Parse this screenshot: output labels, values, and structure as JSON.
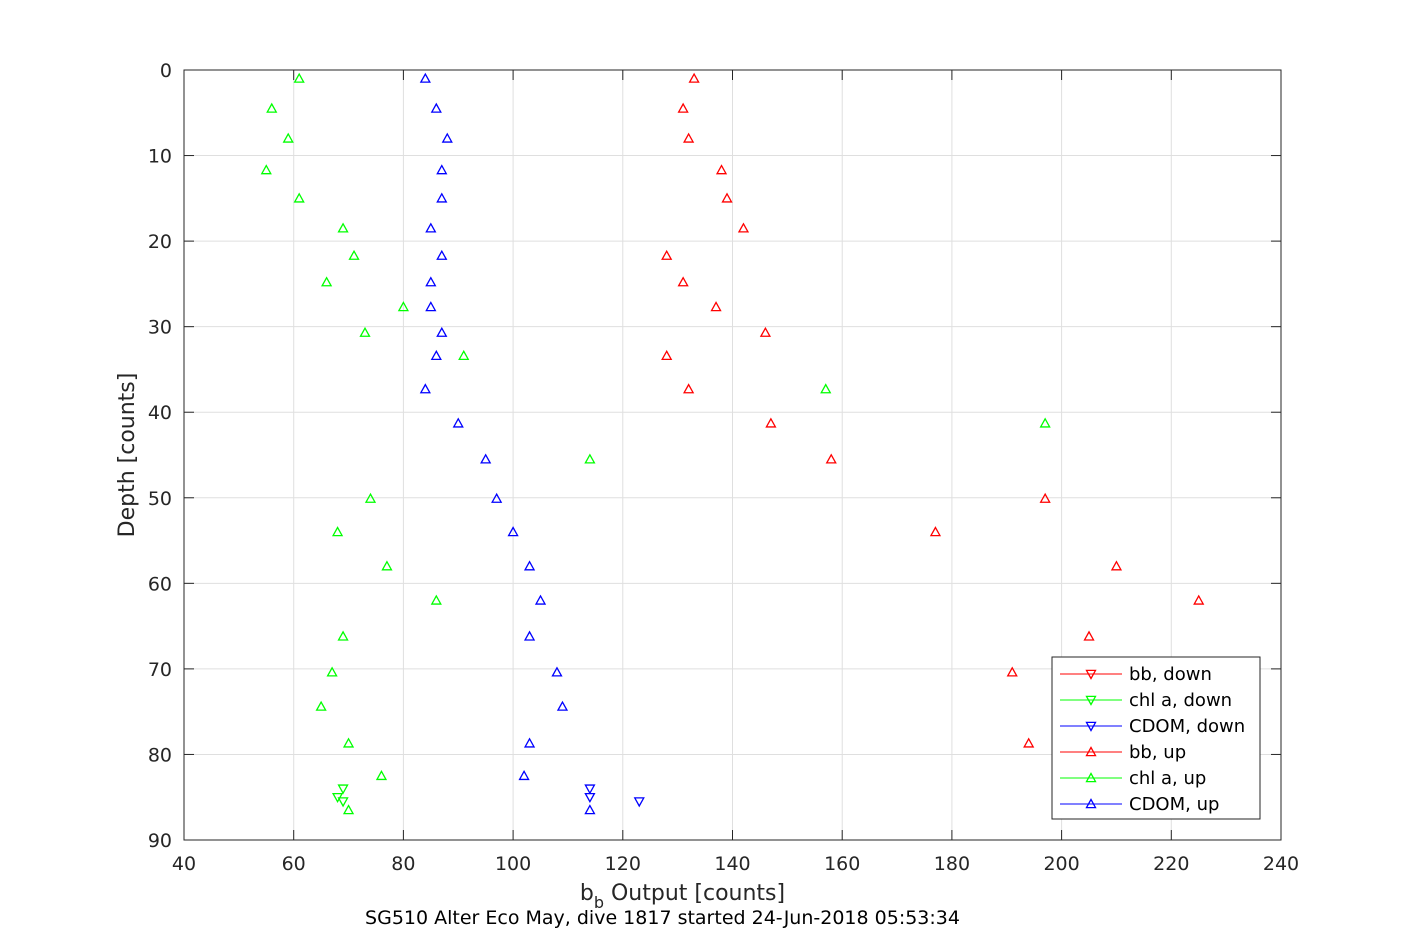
{
  "chart_data": {
    "type": "scatter",
    "xlabel_main": "b",
    "xlabel_sub": "b",
    "xlabel_rest": " Output [counts]",
    "ylabel": "Depth [counts]",
    "caption": "SG510 Alter Eco May, dive 1817 started 24-Jun-2018 05:53:34",
    "xlim": [
      40,
      240
    ],
    "ylim": [
      0,
      90
    ],
    "y_reversed": true,
    "grid": true,
    "legend_placement": "bottom-right",
    "x_ticks": [
      40,
      60,
      80,
      100,
      120,
      140,
      160,
      180,
      200,
      220,
      240
    ],
    "y_ticks": [
      0,
      10,
      20,
      30,
      40,
      50,
      60,
      70,
      80,
      90
    ],
    "series": [
      {
        "name": "bb, down",
        "color": "#ff0000",
        "marker": "triangle-down",
        "points": []
      },
      {
        "name": "chl a, down",
        "color": "#00ff00",
        "marker": "triangle-down",
        "points": [
          [
            69,
            84
          ],
          [
            68,
            85
          ],
          [
            69,
            85.5
          ]
        ]
      },
      {
        "name": "CDOM, down",
        "color": "#0000ff",
        "marker": "triangle-down",
        "points": [
          [
            114,
            84
          ],
          [
            114,
            85
          ],
          [
            123,
            85.5
          ]
        ]
      },
      {
        "name": "bb, up",
        "color": "#ff0000",
        "marker": "triangle-up",
        "points": [
          [
            133,
            1
          ],
          [
            131,
            4.5
          ],
          [
            132,
            8
          ],
          [
            138,
            11.7
          ],
          [
            139,
            15
          ],
          [
            142,
            18.5
          ],
          [
            128,
            21.7
          ],
          [
            131,
            24.8
          ],
          [
            137,
            27.7
          ],
          [
            146,
            30.7
          ],
          [
            128,
            33.4
          ],
          [
            132,
            37.3
          ],
          [
            147,
            41.3
          ],
          [
            158,
            45.5
          ],
          [
            197,
            50.1
          ],
          [
            177,
            54
          ],
          [
            210,
            58
          ],
          [
            225,
            62
          ],
          [
            205,
            66.2
          ],
          [
            191,
            70.4
          ],
          [
            194,
            78.7
          ]
        ]
      },
      {
        "name": "chl a, up",
        "color": "#00ff00",
        "marker": "triangle-up",
        "points": [
          [
            61,
            1
          ],
          [
            56,
            4.5
          ],
          [
            59,
            8
          ],
          [
            55,
            11.7
          ],
          [
            61,
            15
          ],
          [
            69,
            18.5
          ],
          [
            71,
            21.7
          ],
          [
            66,
            24.8
          ],
          [
            80,
            27.7
          ],
          [
            73,
            30.7
          ],
          [
            91,
            33.4
          ],
          [
            157,
            37.3
          ],
          [
            197,
            41.3
          ],
          [
            114,
            45.5
          ],
          [
            74,
            50.1
          ],
          [
            68,
            54
          ],
          [
            77,
            58
          ],
          [
            86,
            62
          ],
          [
            69,
            66.2
          ],
          [
            67,
            70.4
          ],
          [
            65,
            74.4
          ],
          [
            70,
            78.7
          ],
          [
            76,
            82.5
          ],
          [
            70,
            86.5
          ]
        ]
      },
      {
        "name": "CDOM, up",
        "color": "#0000ff",
        "marker": "triangle-up",
        "points": [
          [
            84,
            1
          ],
          [
            86,
            4.5
          ],
          [
            88,
            8
          ],
          [
            87,
            11.7
          ],
          [
            87,
            15
          ],
          [
            85,
            18.5
          ],
          [
            87,
            21.7
          ],
          [
            85,
            24.8
          ],
          [
            85,
            27.7
          ],
          [
            87,
            30.7
          ],
          [
            86,
            33.4
          ],
          [
            84,
            37.3
          ],
          [
            90,
            41.3
          ],
          [
            95,
            45.5
          ],
          [
            97,
            50.1
          ],
          [
            100,
            54
          ],
          [
            103,
            58
          ],
          [
            105,
            62
          ],
          [
            103,
            66.2
          ],
          [
            108,
            70.4
          ],
          [
            109,
            74.4
          ],
          [
            103,
            78.7
          ],
          [
            102,
            82.5
          ],
          [
            114,
            86.5
          ]
        ]
      }
    ]
  }
}
